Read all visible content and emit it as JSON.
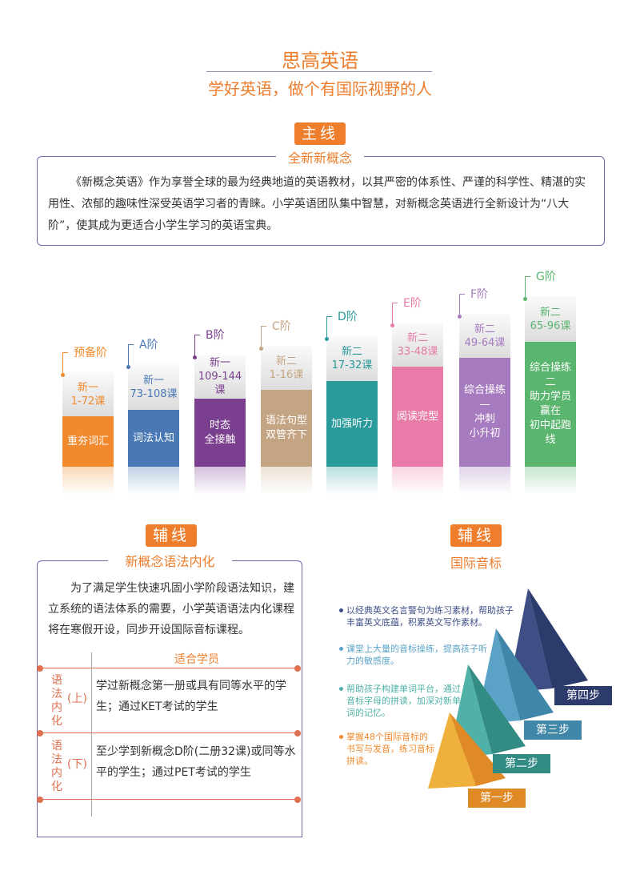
{
  "header": {
    "title": "思高英语",
    "subtitle": "学好英语，做个有国际视野的人"
  },
  "main": {
    "badge": "主线",
    "title": "全新新概念",
    "text": "《新概念英语》作为享誉全球的最为经典地道的英语教材，以其严密的体系性、严谨的科学性、精湛的实用性、浓郁的趣味性深受英语学习者的青睐。小学英语团队集中智慧，对新概念英语进行全新设计为“八大阶”，使其成为更适合小学生学习的英语宝典。"
  },
  "levels": [
    {
      "stage": "预备阶",
      "top": [
        "新一",
        "1-72课"
      ],
      "bottom": [
        "重夯词汇"
      ]
    },
    {
      "stage": "A阶",
      "top": [
        "新一",
        "73-108课"
      ],
      "bottom": [
        "词法认知"
      ]
    },
    {
      "stage": "B阶",
      "top": [
        "新一",
        "109-144课"
      ],
      "bottom": [
        "时态",
        "全接触"
      ]
    },
    {
      "stage": "C阶",
      "top": [
        "新二",
        "1-16课"
      ],
      "bottom": [
        "语法句型",
        "双管齐下"
      ]
    },
    {
      "stage": "D阶",
      "top": [
        "新二",
        "17-32课"
      ],
      "bottom": [
        "加强听力"
      ]
    },
    {
      "stage": "E阶",
      "top": [
        "新二",
        "33-48课"
      ],
      "bottom": [
        "阅读完型"
      ]
    },
    {
      "stage": "F阶",
      "top": [
        "新二",
        "49-64课"
      ],
      "bottom": [
        "综合操练",
        "—",
        "冲刺",
        "小升初"
      ]
    },
    {
      "stage": "G阶",
      "top": [
        "新二",
        "65-96课"
      ],
      "bottom": [
        "综合操练",
        "二",
        "助力学员",
        "赢在",
        "初中起跑线"
      ]
    }
  ],
  "grammar": {
    "badge": "辅线",
    "title": "新概念语法内化",
    "text": "为了满足学生快速巩固小学阶段语法知识，建立系统的语法体系的需要，小学英语语法内化课程将在寒假开设，同步开设国际音标课程。",
    "table": {
      "header": "适合学员",
      "rows": [
        {
          "label": "语法内化",
          "tag": "(上)",
          "text": "学过新概念第一册或具有同等水平的学生；通过KET考试的学生"
        },
        {
          "label": "语法内化",
          "tag": "(下)",
          "text": "至少学到新概念D阶(二册32课)或同等水平的学生；通过PET考试的学生"
        }
      ]
    }
  },
  "phonetics": {
    "badge": "辅线",
    "title": "国际音标",
    "bullets": [
      "以经典英文名言警句为练习素材，帮助孩子丰富英文底蕴，积累英文写作素材。",
      "课堂上大量的音标操练，提高孩子听力的敏感度。",
      "帮助孩子构建单词平台，通过音标字母的拼读，加深对新单词的记忆。",
      "掌握48个国际音标的书写与发音，练习音标拼读。"
    ],
    "steps": [
      "第四步",
      "第三步",
      "第二步",
      "第一步"
    ]
  }
}
